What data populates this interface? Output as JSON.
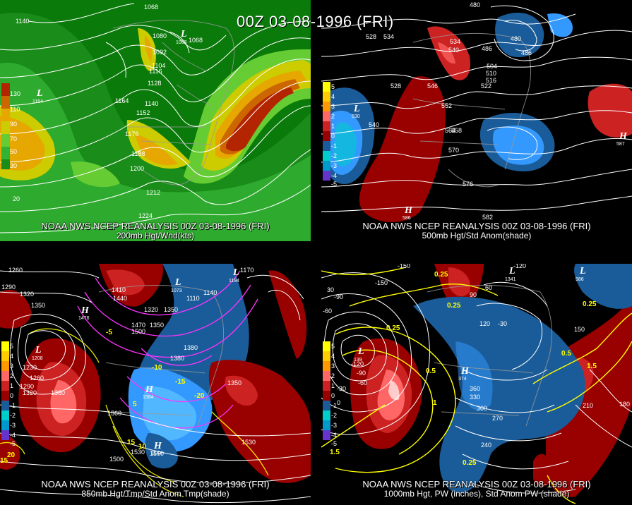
{
  "header": {
    "main_title": "00Z 03-08-1996 (FRI)"
  },
  "panels": [
    {
      "id": "upper-left",
      "caption": "NOAA NWS NCEP REANALYSIS 00Z 03-08-1996 (FRI)",
      "subtitle": "200mb Hgt/Wnd(kts)",
      "scale_labels": [
        "130",
        "110",
        "90",
        "70",
        "50",
        "30"
      ],
      "contour_labels": [
        "1068",
        "1080",
        "1068",
        "1092",
        "1104",
        "1116",
        "1128",
        "1140",
        "1152",
        "1164",
        "1176",
        "1188",
        "1200",
        "1212",
        "1224",
        "1140",
        "20"
      ],
      "centers": [
        {
          "kind": "L",
          "value": "1154"
        },
        {
          "kind": "L",
          "value": "1063"
        }
      ],
      "colors": [
        "#006400",
        "#1a8c1a",
        "#33b333",
        "#66cc33",
        "#cccc00",
        "#e6a800",
        "#cc6600",
        "#b32400"
      ]
    },
    {
      "id": "upper-right",
      "caption": "NOAA NWS NCEP REANALYSIS 00Z 03-08-1996 (FRI)",
      "subtitle": "500mb Hgt/Std Anom(shade)",
      "scale_labels": [
        "5",
        "4",
        "3",
        "2",
        "1",
        "0",
        "-1",
        "-2",
        "-3",
        "-4",
        "-5"
      ],
      "contour_labels": [
        "480",
        "528",
        "534",
        "540",
        "486",
        "480",
        "486",
        "504",
        "510",
        "516",
        "522",
        "528",
        "546",
        "552",
        "558",
        "564",
        "570",
        "576",
        "582",
        "540",
        "534"
      ],
      "centers": [
        {
          "kind": "L",
          "value": "530"
        },
        {
          "kind": "H",
          "value": "586"
        },
        {
          "kind": "H",
          "value": "587"
        }
      ]
    },
    {
      "id": "lower-left",
      "caption": "NOAA NWS NCEP REANALYSIS 00Z 03-08-1996 (FRI)",
      "subtitle": "850mb Hgt/Tmp/Std Anom Tmp(shade)",
      "scale_labels": [
        "5",
        "4",
        "3",
        "2",
        "1",
        "0",
        "-1",
        "-2",
        "-3",
        "-4",
        "-5"
      ],
      "contour_labels": [
        "1260",
        "1290",
        "1320",
        "1350",
        "1410",
        "1440",
        "1380",
        "1350",
        "1320",
        "1350",
        "1470",
        "1500",
        "1110",
        "1140",
        "1170",
        "1380",
        "1350",
        "1230",
        "1260",
        "1290",
        "1320",
        "1380",
        "1560",
        "1530",
        "1500",
        "1530",
        "1550",
        "15",
        "10",
        "5",
        "20",
        "15",
        "-5",
        "-10",
        "-15",
        "-20"
      ],
      "centers": [
        {
          "kind": "H",
          "value": "1476"
        },
        {
          "kind": "L",
          "value": "1073"
        },
        {
          "kind": "L",
          "value": "1194"
        },
        {
          "kind": "L",
          "value": "1208"
        },
        {
          "kind": "H",
          "value": "1584"
        },
        {
          "kind": "H",
          "value": "1544"
        }
      ]
    },
    {
      "id": "lower-right",
      "caption": "NOAA NWS NCEP REANALYSIS 00Z 03-08-1996 (FRI)",
      "subtitle": "1000mb Hgt, PW (inches), Std Anom PW (shade)",
      "scale_labels": [
        "5",
        "4",
        "3",
        "2",
        "1",
        "0",
        "-1",
        "-2",
        "-3",
        "-4",
        "-5"
      ],
      "contour_labels": [
        "-150",
        "-120",
        "-90",
        "-60",
        "-30",
        "0",
        "30",
        "60",
        "90",
        "120",
        "150",
        "180",
        "210",
        "240",
        "270",
        "300",
        "330",
        "360",
        "0.25",
        "0.25",
        "0.25",
        "0.5",
        "1.5",
        "0.25",
        "0.25",
        "0.5",
        "1.5",
        "1",
        "-30",
        "-60",
        "-90",
        "-120",
        "-150"
      ],
      "centers": [
        {
          "kind": "L",
          "value": "139"
        },
        {
          "kind": "L",
          "value": "1341"
        },
        {
          "kind": "H",
          "value": "374"
        },
        {
          "kind": "L",
          "value": "986"
        }
      ]
    }
  ],
  "anomaly_colors": {
    "pos": [
      "#ffff00",
      "#ffcc00",
      "#ff9900",
      "#ff6666",
      "#cc2222",
      "#990000"
    ],
    "neg": [
      "#1a5c99",
      "#3399ff",
      "#00cccc",
      "#0099cc",
      "#6633cc",
      "#9900cc"
    ],
    "contour_white": "#ffffff",
    "contour_yellow": "#ffff00",
    "contour_magenta": "#ff33ff",
    "land_outline": "#9a9a9a"
  }
}
